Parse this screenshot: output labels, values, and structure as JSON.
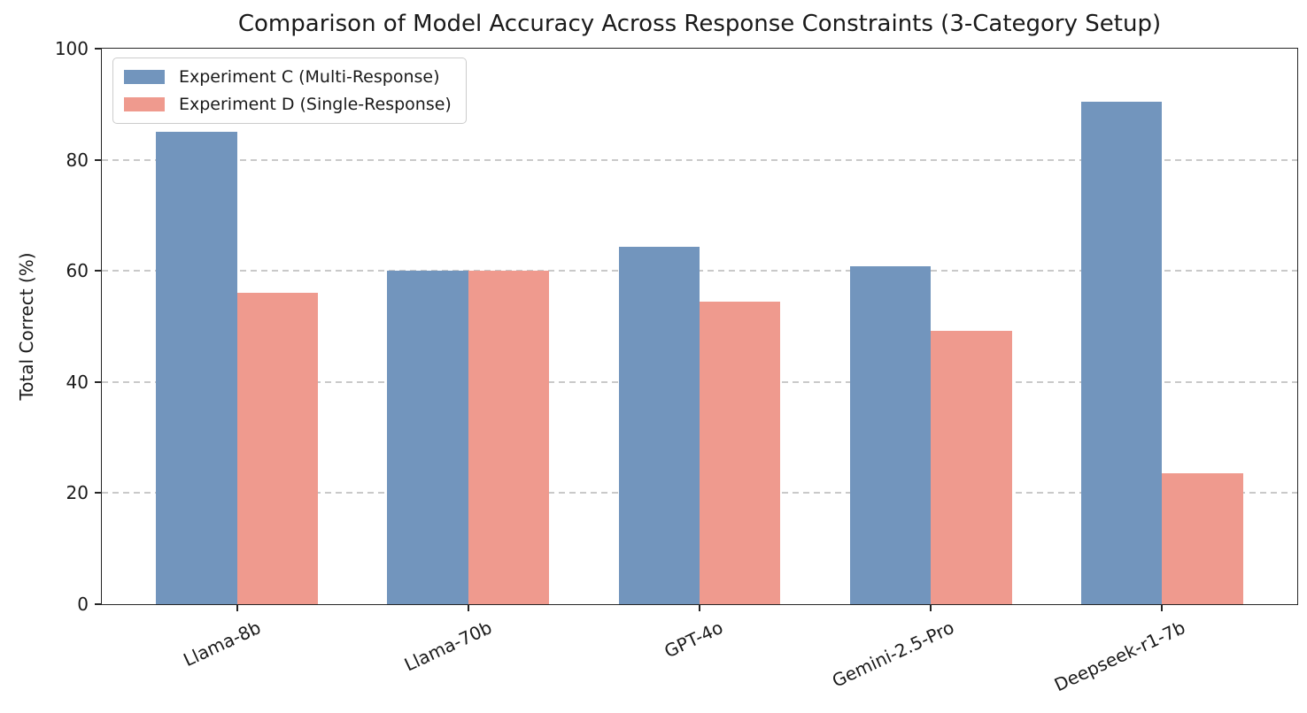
{
  "chart_data": {
    "type": "bar",
    "title": "Comparison of Model Accuracy Across Response Constraints (3-Category Setup)",
    "ylabel": "Total Correct (%)",
    "xlabel": "",
    "categories": [
      "Llama-8b",
      "Llama-70b",
      "GPT-4o",
      "Gemini-2.5-Pro",
      "Deepseek-r1-7b"
    ],
    "series": [
      {
        "name": "Experiment C (Multi-Response)",
        "color": "#7295BD",
        "values": [
          85.0,
          60.0,
          64.3,
          60.8,
          90.5
        ]
      },
      {
        "name": "Experiment D (Single-Response)",
        "color": "#EF9A8E",
        "values": [
          56.0,
          60.0,
          54.5,
          49.2,
          23.5
        ]
      }
    ],
    "ylim": [
      0,
      100
    ],
    "yticks": [
      0,
      20,
      40,
      60,
      80,
      100
    ],
    "grid": "horizontal-dashed",
    "gridline_color": "#c9c9c9",
    "axis_color": "#262626",
    "legend_position": "upper-left",
    "bar_width_fraction": 0.35,
    "x_tick_rotation_deg": 25
  }
}
